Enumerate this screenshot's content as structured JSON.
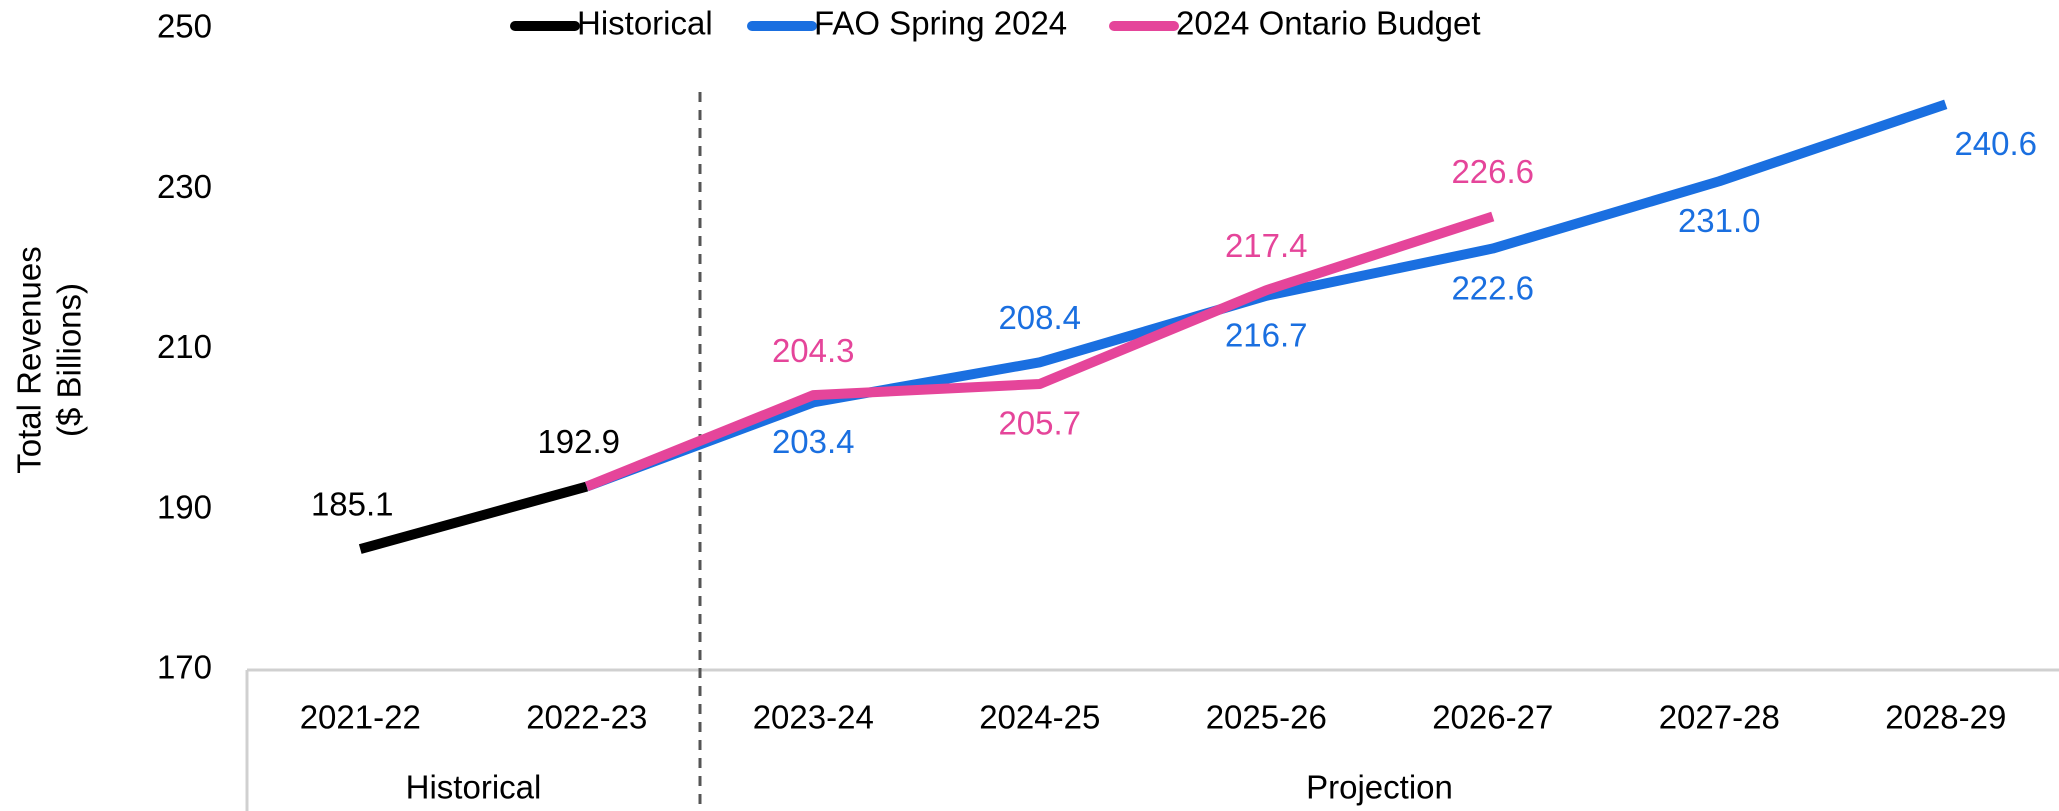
{
  "chart_data": {
    "type": "line",
    "ylabel": [
      "Total Revenues",
      "($ Billions)"
    ],
    "categories": [
      "2021-22",
      "2022-23",
      "2023-24",
      "2024-25",
      "2025-26",
      "2026-27",
      "2027-28",
      "2028-29"
    ],
    "groups": [
      {
        "label": "Historical",
        "from": 0,
        "to": 1
      },
      {
        "label": "Projection",
        "from": 2,
        "to": 7
      }
    ],
    "series": [
      {
        "name": "Historical",
        "color": "#000000",
        "values": [
          185.1,
          192.9,
          null,
          null,
          null,
          null,
          null,
          null
        ],
        "value_labels": [
          "185.1",
          "192.9",
          null,
          null,
          null,
          null,
          null,
          null
        ]
      },
      {
        "name": "FAO Spring 2024",
        "color": "#1a6fe0",
        "values": [
          null,
          192.9,
          203.4,
          208.4,
          216.7,
          222.6,
          231.0,
          240.6
        ],
        "value_labels": [
          null,
          null,
          "203.4",
          "208.4",
          "216.7",
          "222.6",
          "231.0",
          "240.6"
        ]
      },
      {
        "name": "2024 Ontario Budget",
        "color": "#e5459a",
        "values": [
          null,
          192.9,
          204.3,
          205.7,
          217.4,
          226.6,
          null,
          null
        ],
        "value_labels": [
          null,
          null,
          "204.3",
          "205.7",
          "217.4",
          "226.6",
          null,
          null
        ]
      }
    ],
    "ylim": [
      170,
      250
    ],
    "yticks": [
      170,
      190,
      210,
      230,
      250
    ],
    "grid": false,
    "legend": "top"
  }
}
